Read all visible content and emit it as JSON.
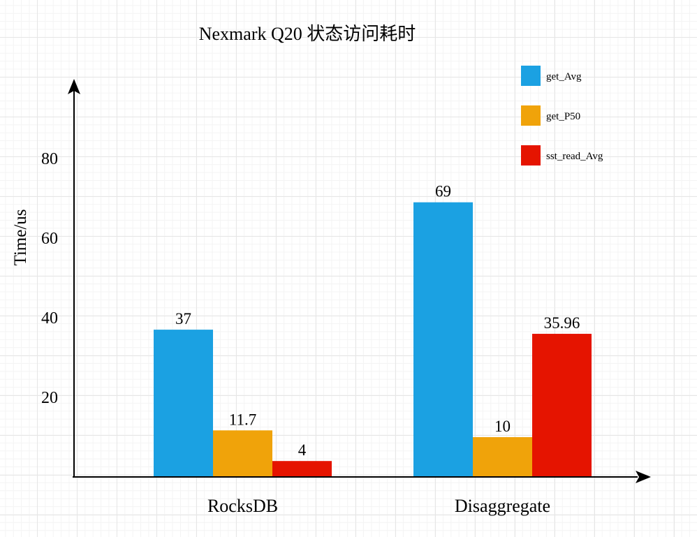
{
  "chart_data": {
    "type": "bar",
    "title": "Nexmark Q20 状态访问耗时",
    "xlabel": "",
    "ylabel": "Time/us",
    "ylim": [
      0,
      100
    ],
    "yticks": [
      20,
      40,
      60,
      80
    ],
    "categories": [
      "RocksDB",
      "Disaggregate"
    ],
    "series": [
      {
        "name": "get_Avg",
        "color": "#1ba1e2",
        "values": [
          37,
          69
        ],
        "labels": [
          "37",
          "69"
        ]
      },
      {
        "name": "get_P50",
        "color": "#f0a30a",
        "values": [
          11.7,
          10
        ],
        "labels": [
          "11.7",
          "10"
        ]
      },
      {
        "name": "sst_read_Avg",
        "color": "#e51400",
        "values": [
          4,
          35.96
        ],
        "labels": [
          "4",
          "35.96"
        ]
      }
    ],
    "legend_position": "top-right",
    "grid": true
  }
}
